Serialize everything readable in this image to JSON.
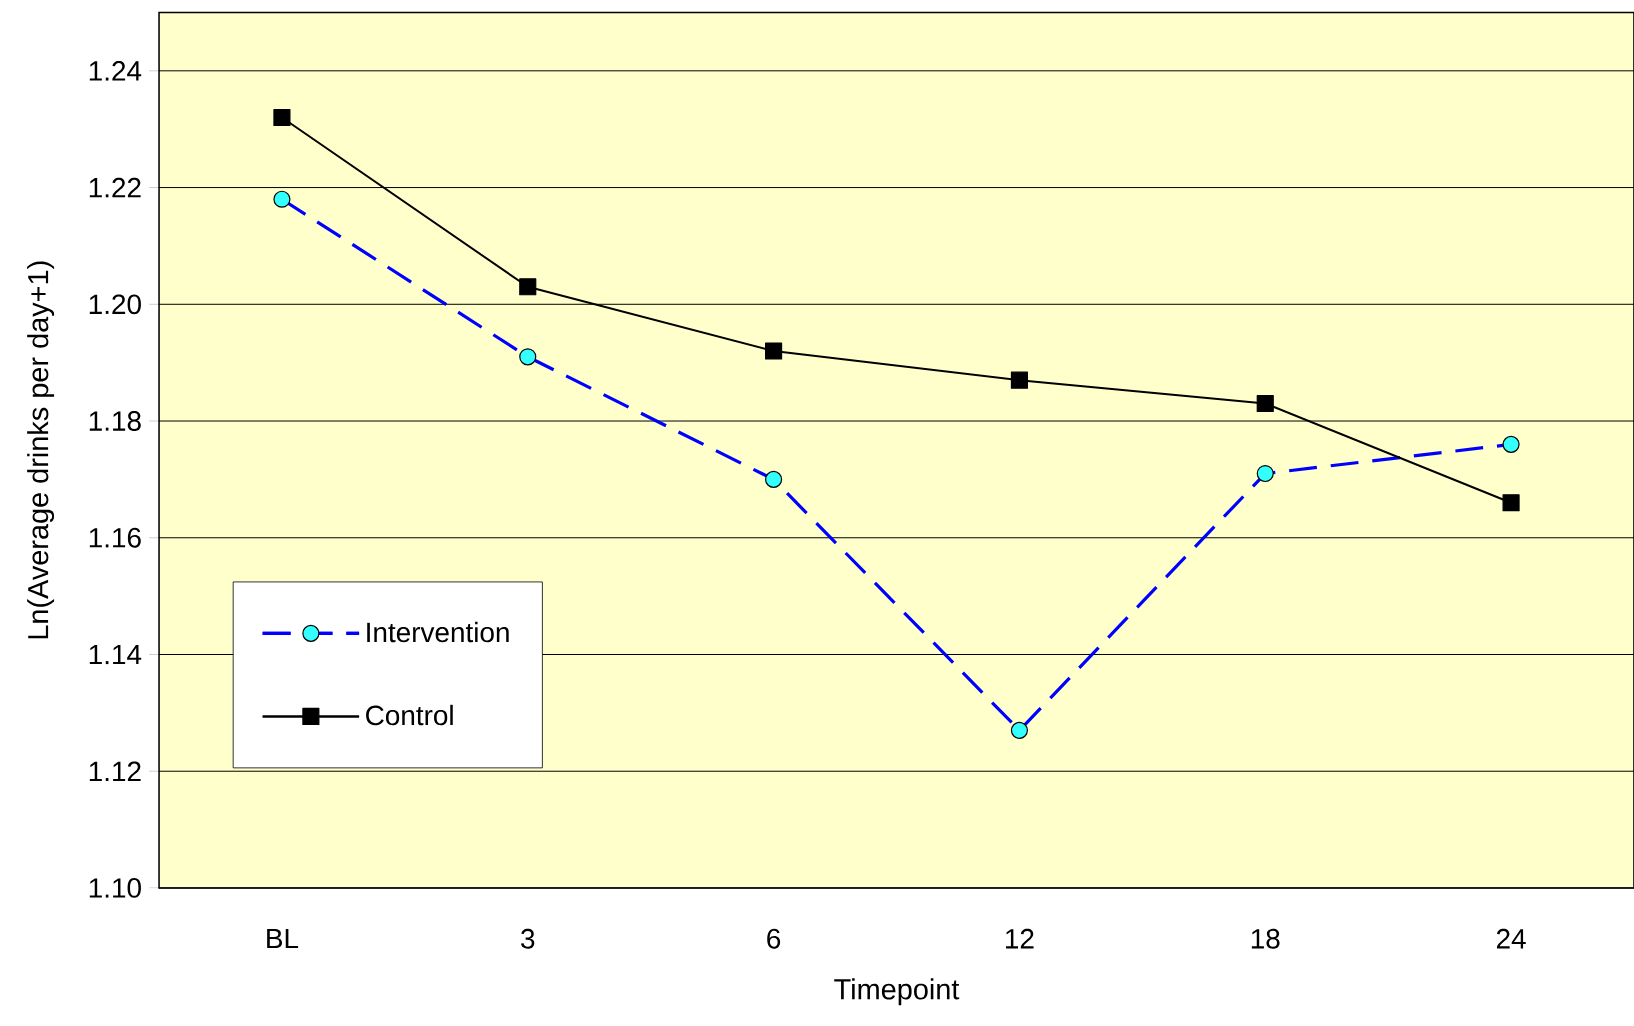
{
  "chart_data": {
    "type": "line",
    "xlabel": "Timepoint",
    "ylabel": "Ln(Average drinks per day+1)",
    "categories": [
      "BL",
      "3",
      "6",
      "12",
      "18",
      "24"
    ],
    "series": [
      {
        "name": "Intervention",
        "color": "#0000ff",
        "marker": "circle",
        "line_style": "dashed",
        "values": [
          1.218,
          1.191,
          1.17,
          1.127,
          1.171,
          1.176
        ]
      },
      {
        "name": "Control",
        "color": "#000000",
        "marker": "square",
        "line_style": "solid",
        "values": [
          1.232,
          1.203,
          1.192,
          1.187,
          1.183,
          1.166
        ]
      }
    ],
    "ylim": [
      1.1,
      1.25
    ],
    "yticks": [
      {
        "value": 1.1,
        "label": "1.10"
      },
      1.12,
      1.14,
      1.16,
      1.18,
      {
        "value": 1.2,
        "label": "1.20"
      },
      1.22,
      1.24
    ],
    "grid": "y",
    "legend": "bottom left"
  }
}
